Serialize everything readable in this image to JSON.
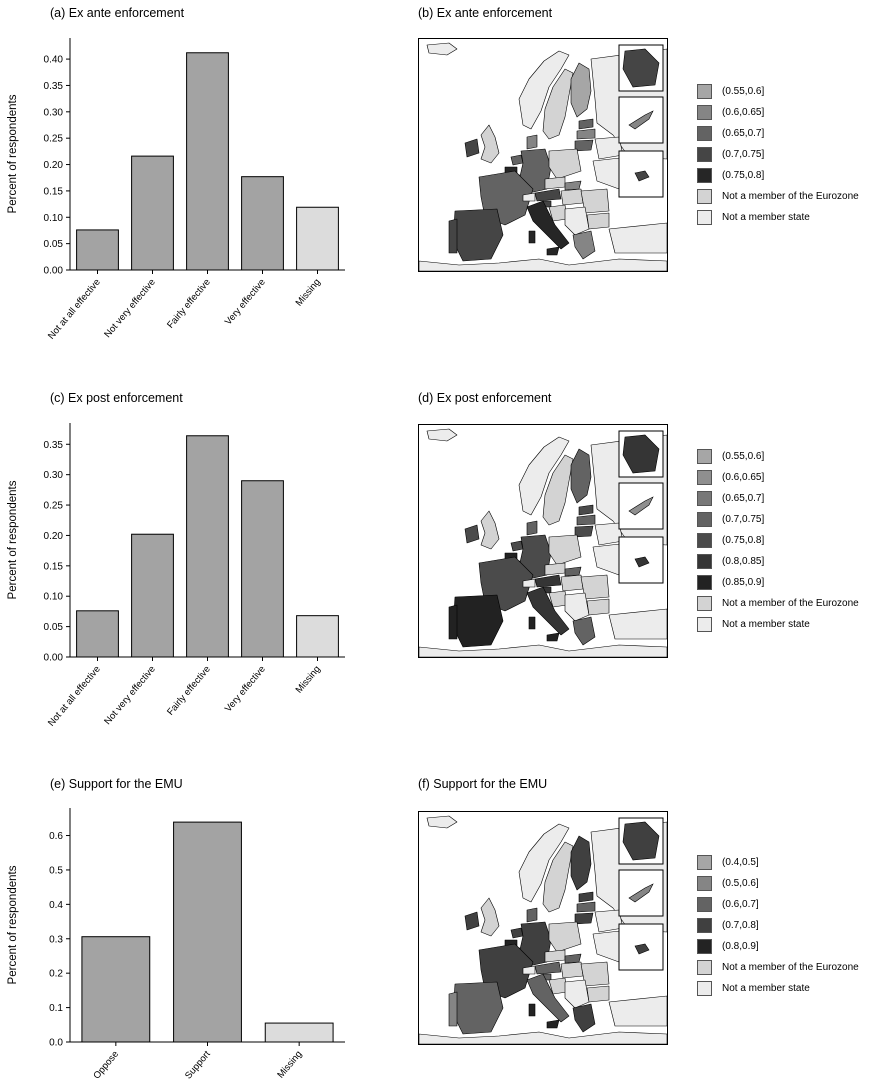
{
  "panels": {
    "a": "(a) Ex ante enforcement",
    "b": "(b) Ex ante enforcement",
    "c": "(c) Ex post enforcement",
    "d": "(d) Ex post enforcement",
    "e": "(e) Support for the EMU",
    "f": "(f) Support for the EMU"
  },
  "colors": {
    "bar": "#a3a3a3",
    "missing_bar": "#dcdcdc",
    "not_eurozone": "#d3d3d3",
    "not_member": "#ececec"
  },
  "chart_data": [
    {
      "type": "bar",
      "title": "(a) Ex ante enforcement",
      "ylabel": "Percent of respondents",
      "xlabel": "",
      "categories": [
        "Not at all effective",
        "Not very effective",
        "Fairly effective",
        "Very effective",
        "Missing"
      ],
      "values": [
        0.076,
        0.216,
        0.412,
        0.177,
        0.119
      ],
      "ylim": [
        0,
        0.44
      ],
      "yticks": [
        "0.00",
        "0.05",
        "0.10",
        "0.15",
        "0.20",
        "0.25",
        "0.30",
        "0.35",
        "0.40"
      ],
      "ytick_values": [
        0,
        0.05,
        0.1,
        0.15,
        0.2,
        0.25,
        0.3,
        0.35,
        0.4
      ]
    },
    {
      "type": "bar",
      "title": "(c) Ex post enforcement",
      "ylabel": "Percent of respondents",
      "xlabel": "",
      "categories": [
        "Not at all effective",
        "Not very effective",
        "Fairly effective",
        "Very effective",
        "Missing"
      ],
      "values": [
        0.076,
        0.202,
        0.364,
        0.29,
        0.068
      ],
      "ylim": [
        0,
        0.385
      ],
      "yticks": [
        "0.00",
        "0.05",
        "0.10",
        "0.15",
        "0.20",
        "0.25",
        "0.30",
        "0.35"
      ],
      "ytick_values": [
        0,
        0.05,
        0.1,
        0.15,
        0.2,
        0.25,
        0.3,
        0.35
      ]
    },
    {
      "type": "bar",
      "title": "(e) Support for the EMU",
      "ylabel": "Percent of respondents",
      "xlabel": "",
      "categories": [
        "Oppose",
        "Support",
        "Missing"
      ],
      "values": [
        0.306,
        0.639,
        0.055
      ],
      "ylim": [
        0,
        0.68
      ],
      "yticks": [
        "0.0",
        "0.1",
        "0.2",
        "0.3",
        "0.4",
        "0.5",
        "0.6"
      ],
      "ytick_values": [
        0,
        0.1,
        0.2,
        0.3,
        0.4,
        0.5,
        0.6
      ]
    }
  ],
  "maps": [
    {
      "title": "(b) Ex ante enforcement",
      "legend": [
        {
          "label": "(0.55,0.6]",
          "color": "#a6a6a6"
        },
        {
          "label": "(0.6,0.65]",
          "color": "#858585"
        },
        {
          "label": "(0.65,0.7]",
          "color": "#636363"
        },
        {
          "label": "(0.7,0.75]",
          "color": "#454545"
        },
        {
          "label": "(0.75,0.8]",
          "color": "#262626"
        },
        {
          "label": "Not a member of the Eurozone",
          "color": "#d3d3d3"
        },
        {
          "label": "Not a member state",
          "color": "#ececec"
        }
      ]
    },
    {
      "title": "(d) Ex post enforcement",
      "legend": [
        {
          "label": "(0.55,0.6]",
          "color": "#a6a6a6"
        },
        {
          "label": "(0.6,0.65]",
          "color": "#8f8f8f"
        },
        {
          "label": "(0.65,0.7]",
          "color": "#787878"
        },
        {
          "label": "(0.7,0.75]",
          "color": "#636363"
        },
        {
          "label": "(0.75,0.8]",
          "color": "#4b4b4b"
        },
        {
          "label": "(0.8,0.85]",
          "color": "#353535"
        },
        {
          "label": "(0.85,0.9]",
          "color": "#222222"
        },
        {
          "label": "Not a member of the Eurozone",
          "color": "#d3d3d3"
        },
        {
          "label": "Not a member state",
          "color": "#ececec"
        }
      ]
    },
    {
      "title": "(f) Support for the EMU",
      "legend": [
        {
          "label": "(0.4,0.5]",
          "color": "#a6a6a6"
        },
        {
          "label": "(0.5,0.6]",
          "color": "#858585"
        },
        {
          "label": "(0.6,0.7]",
          "color": "#636363"
        },
        {
          "label": "(0.7,0.8]",
          "color": "#404040"
        },
        {
          "label": "(0.8,0.9]",
          "color": "#232323"
        },
        {
          "label": "Not a member of the Eurozone",
          "color": "#d3d3d3"
        },
        {
          "label": "Not a member state",
          "color": "#ececec"
        }
      ]
    }
  ]
}
